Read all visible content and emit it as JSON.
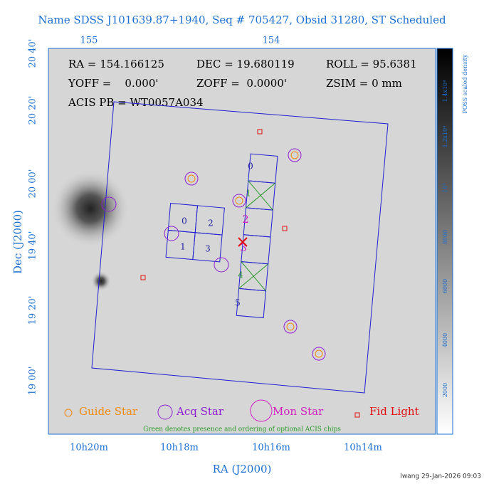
{
  "title": "Name SDSS J101639.87+1940, Seq # 705427, Obsid 31280, ST Scheduled",
  "info": [
    "RA = 154.166125",
    "DEC = 19.680119",
    "ROLL = 95.6381",
    "YOFF =    0.000'",
    "ZOFF =  0.0000'",
    "ZSIM = 0 mm",
    "ACIS PB = WT0057A034"
  ],
  "top_ticks": [
    "155",
    "154"
  ],
  "x_ticks": [
    "10h20m",
    "10h18m",
    "10h16m",
    "10h14m"
  ],
  "y_ticks": [
    "20 40'",
    "20 20'",
    "20 00'",
    "19 40'",
    "19 20'",
    "19 00'"
  ],
  "x_label": "RA (J2000)",
  "y_label": "Dec (J2000)",
  "colorbar": {
    "label": "POSS scaled density",
    "ticks": [
      "1.4x10⁴",
      "1.2x10⁴",
      "10⁴",
      "8000",
      "6000",
      "4000",
      "2000"
    ]
  },
  "legend": [
    "Guide Star",
    "Acq Star",
    "Mon Star",
    "Fid Light"
  ],
  "note": "Green denotes presence and ordering of optional ACIS chips",
  "chips": [
    "0",
    "2",
    "1",
    "3",
    "0",
    "1",
    "2",
    "3",
    "4",
    "5"
  ],
  "footer": "lwang 29-Jan-2026 09:03"
}
